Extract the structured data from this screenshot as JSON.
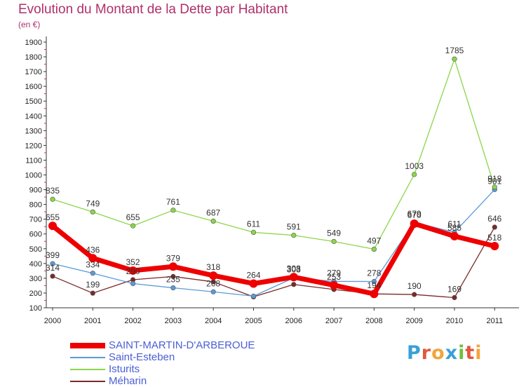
{
  "chart_data": {
    "type": "line",
    "title": "Evolution du Montant de la Dette par Habitant",
    "ylabel": "(en €)",
    "xlabel": "",
    "ylim": [
      100,
      1900
    ],
    "yticks": [
      100,
      200,
      300,
      400,
      500,
      600,
      700,
      800,
      900,
      1000,
      1100,
      1200,
      1300,
      1400,
      1500,
      1600,
      1700,
      1800,
      1900
    ],
    "categories": [
      "2000",
      "2001",
      "2002",
      "2003",
      "2004",
      "2005",
      "2006",
      "2007",
      "2008",
      "2009",
      "2010",
      "2011"
    ],
    "grid": false,
    "legend_position": "bottom-left",
    "series": [
      {
        "name": "Méharin",
        "color": "#7a2a2a",
        "values": [
          314,
          199,
          290,
          312,
          276,
          174,
          258,
          224,
          194,
          190,
          169,
          646
        ],
        "labels": [
          "314",
          "199",
          "290",
          "",
          "",
          "",
          "",
          "",
          "",
          "190",
          "169",
          "646"
        ]
      },
      {
        "name": "Saint-Esteben",
        "color": "#5b9bd5",
        "values": [
          399,
          334,
          264,
          235,
          208,
          179,
          303,
          279,
          278,
          679,
          611,
          901
        ],
        "labels": [
          "399",
          "334",
          "",
          "235",
          "208",
          "",
          "303",
          "279",
          "278",
          "679",
          "611",
          "901"
        ]
      },
      {
        "name": "Isturits",
        "color": "#8cd64a",
        "values": [
          835,
          749,
          655,
          761,
          687,
          611,
          591,
          549,
          497,
          1003,
          1785,
          918
        ],
        "labels": [
          "835",
          "749",
          "655",
          "761",
          "687",
          "611",
          "591",
          "549",
          "497",
          "1003",
          "1785",
          "918"
        ]
      },
      {
        "name": "SAINT-MARTIN-D'ARBEROUE",
        "color": "#ee0000",
        "values": [
          655,
          436,
          352,
          379,
          318,
          264,
          308,
          253,
          194,
          670,
          585,
          518
        ],
        "labels": [
          "655",
          "436",
          "352",
          "379",
          "318",
          "264",
          "308",
          "253",
          "194",
          "670",
          "585",
          "518"
        ]
      }
    ],
    "legend": [
      "SAINT-MARTIN-D'ARBEROUE",
      "Saint-Esteben",
      "Isturits",
      "Méharin"
    ]
  },
  "brand": {
    "logo_text": "Proxiti",
    "letter_colors": [
      "#3aa0d8",
      "#e2583e",
      "#f2a53c",
      "#3aa0d8",
      "#6fbf3f",
      "#e2583e",
      "#f2a53c"
    ]
  }
}
